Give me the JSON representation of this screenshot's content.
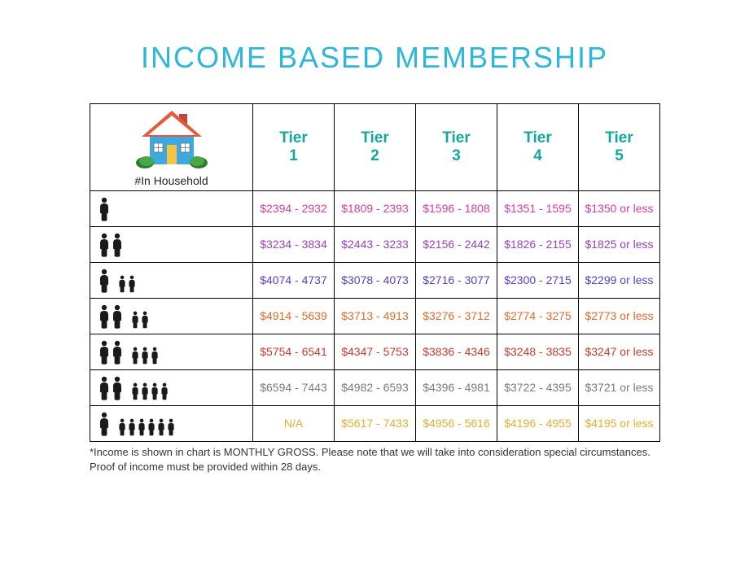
{
  "title": "INCOME BASED MEMBERSHIP",
  "title_color": "#2fb7d9",
  "title_fontsize": 36,
  "header_label_color": "#13a89e",
  "header_fontsize": 19,
  "household_caption": "#In Household",
  "household_caption_color": "#222222",
  "tier_headers": [
    "Tier 1",
    "Tier 2",
    "Tier 3",
    "Tier 4",
    "Tier 5"
  ],
  "people_icon_color": "#1a1a1a",
  "house_colors": {
    "roof": "#e55a3c",
    "wall": "#3da9e0",
    "door": "#f4c542",
    "window": "#ffffff",
    "chimney": "#b94a3a",
    "bush": "#4aa84a",
    "bush_dark": "#2e7a2e"
  },
  "row_colors": [
    "#d73ca6",
    "#9b3fbf",
    "#5a3fbf",
    "#e06a2c",
    "#c73a2e",
    "#7a7a7a",
    "#e0b030"
  ],
  "rows": [
    {
      "adults": 1,
      "children": 0,
      "cells": [
        "$2394 - 2932",
        "$1809 - 2393",
        "$1596 - 1808",
        "$1351 - 1595",
        "$1350 or less"
      ]
    },
    {
      "adults": 2,
      "children": 0,
      "cells": [
        "$3234 - 3834",
        "$2443 - 3233",
        "$2156 - 2442",
        "$1826 - 2155",
        "$1825 or less"
      ]
    },
    {
      "adults": 1,
      "children": 2,
      "cells": [
        "$4074 - 4737",
        "$3078 - 4073",
        "$2716 - 3077",
        "$2300 - 2715",
        "$2299 or less"
      ]
    },
    {
      "adults": 2,
      "children": 2,
      "cells": [
        "$4914 - 5639",
        "$3713 - 4913",
        "$3276 - 3712",
        "$2774 - 3275",
        "$2773 or less"
      ]
    },
    {
      "adults": 2,
      "children": 3,
      "cells": [
        "$5754 - 6541",
        "$4347 - 5753",
        "$3836 - 4346",
        "$3248 - 3835",
        "$3247 or less"
      ]
    },
    {
      "adults": 2,
      "children": 4,
      "cells": [
        "$6594 - 7443",
        "$4982 - 6593",
        "$4396 - 4981",
        "$3722 - 4395",
        "$3721 or less"
      ]
    },
    {
      "adults": 1,
      "children": 6,
      "cells": [
        "N/A",
        "$5617 - 7433",
        "$4956 - 5616",
        "$4196 - 4955",
        "$4195 or less"
      ]
    }
  ],
  "footnote": "*Income is shown in chart is MONTHLY GROSS.  Please note that we will take into consideration special circumstances. Proof of income must be provided within 28 days.",
  "cell_fontsize": 14,
  "border_color": "#000000",
  "background_color": "#ffffff"
}
